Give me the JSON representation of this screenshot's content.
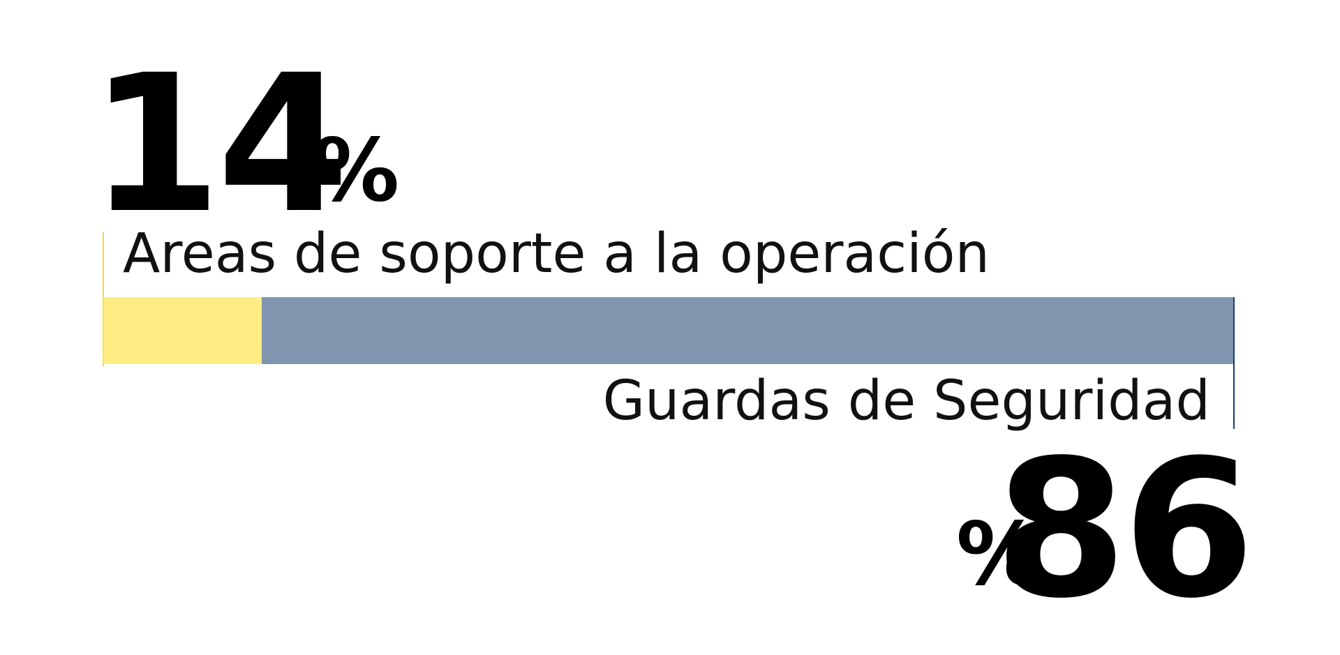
{
  "chart_data": {
    "type": "bar",
    "orientation": "horizontal-stacked",
    "categories": [
      "Areas de soporte a la operación",
      "Guardas de Seguridad"
    ],
    "values": [
      14,
      86
    ],
    "colors": [
      "#FDED82",
      "#8096AF"
    ],
    "tick_colors": [
      "#F5D933",
      "#1B3A6B"
    ],
    "display": {
      "left_value": "14",
      "left_symbol": "%",
      "right_value": "86",
      "right_symbol": "%"
    }
  }
}
